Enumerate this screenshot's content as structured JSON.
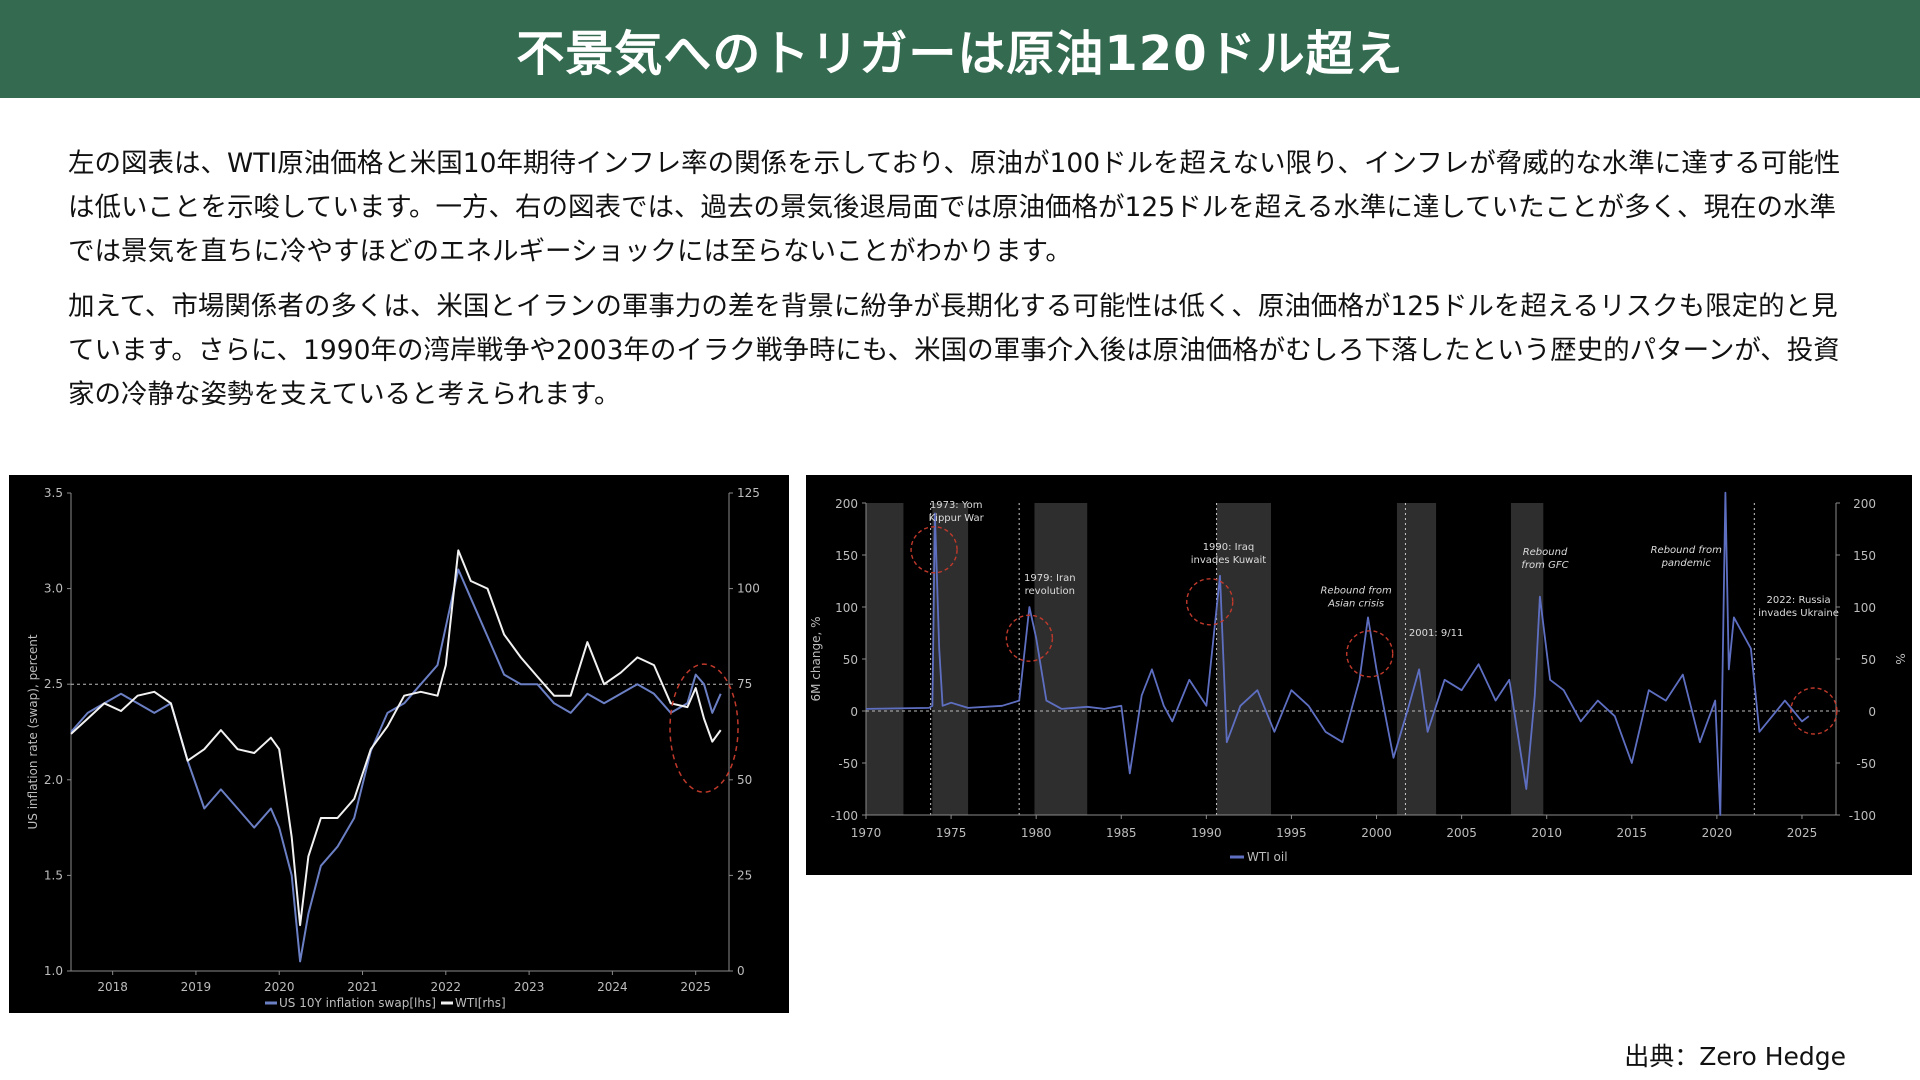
{
  "title": "不景気へのトリガーは原油120ドル超え",
  "paragraphs": [
    "左の図表は、WTI原油価格と米国10年期待インフレ率の関係を示しており、原油が100ドルを超えない限り、インフレが脅威的な水準に達する可能性は低いことを示唆しています。一方、右の図表では、過去の景気後退局面では原油価格が125ドルを超える水準に達していたことが多く、現在の水準では景気を直ちに冷やすほどのエネルギーショックには至らないことがわかります。",
    "加えて、市場関係者の多くは、米国とイランの軍事力の差を背景に紛争が長期化する可能性は低く、原油価格が125ドルを超えるリスクも限定的と見ています。さらに、1990年の湾岸戦争や2003年のイラク戦争時にも、米国の軍事介入後は原油価格がむしろ下落したという歴史的パターンが、投資家の冷静な姿勢を支えていると考えられます。"
  ],
  "source": "出典：Zero Hedge",
  "colors": {
    "header": "#336a50",
    "chart_bg": "#000000",
    "inflation_swap": "#6b7fc4",
    "wti": "#f2f2f2",
    "wti_oil_6m": "#5e6fc2",
    "recession_shade": "#2e2e2e",
    "highlight_circle": "#c0392b"
  },
  "chart_data": [
    {
      "type": "line",
      "ylabel_left": "US inflation rate (swap), percent",
      "ylim_left": [
        1.0,
        3.5
      ],
      "yticks_left": [
        "3.5",
        "3.0",
        "2.5",
        "2.0",
        "1.5",
        "1.0"
      ],
      "ylim_right": [
        0,
        125
      ],
      "yticks_right": [
        "125",
        "100",
        "75",
        "50",
        "25",
        "0"
      ],
      "xlim": [
        2017.5,
        2025.4
      ],
      "xticks": [
        "2018",
        "2019",
        "2020",
        "2021",
        "2022",
        "2023",
        "2024",
        "2025"
      ],
      "reference_line_left": 2.5,
      "highlight": "2024.9-2025.3",
      "series": [
        {
          "name": "US 10Y inflation swap[lhs]",
          "axis": "left",
          "x": [
            2017.5,
            2017.7,
            2017.9,
            2018.1,
            2018.3,
            2018.5,
            2018.7,
            2018.9,
            2019.1,
            2019.3,
            2019.5,
            2019.7,
            2019.9,
            2020.0,
            2020.15,
            2020.25,
            2020.35,
            2020.5,
            2020.7,
            2020.9,
            2021.1,
            2021.3,
            2021.5,
            2021.7,
            2021.9,
            2022.0,
            2022.15,
            2022.3,
            2022.5,
            2022.7,
            2022.9,
            2023.1,
            2023.3,
            2023.5,
            2023.7,
            2023.9,
            2024.1,
            2024.3,
            2024.5,
            2024.7,
            2024.9,
            2025.0,
            2025.1,
            2025.2,
            2025.3
          ],
          "values": [
            2.25,
            2.35,
            2.4,
            2.45,
            2.4,
            2.35,
            2.4,
            2.1,
            1.85,
            1.95,
            1.85,
            1.75,
            1.85,
            1.75,
            1.5,
            1.05,
            1.3,
            1.55,
            1.65,
            1.8,
            2.15,
            2.35,
            2.4,
            2.5,
            2.6,
            2.8,
            3.1,
            2.95,
            2.75,
            2.55,
            2.5,
            2.5,
            2.4,
            2.35,
            2.45,
            2.4,
            2.45,
            2.5,
            2.45,
            2.35,
            2.4,
            2.55,
            2.5,
            2.35,
            2.45
          ]
        },
        {
          "name": "WTI[rhs]",
          "axis": "right",
          "x": [
            2017.5,
            2017.7,
            2017.9,
            2018.1,
            2018.3,
            2018.5,
            2018.7,
            2018.9,
            2019.1,
            2019.3,
            2019.5,
            2019.7,
            2019.9,
            2020.0,
            2020.15,
            2020.25,
            2020.35,
            2020.5,
            2020.7,
            2020.9,
            2021.1,
            2021.3,
            2021.5,
            2021.7,
            2021.9,
            2022.0,
            2022.15,
            2022.3,
            2022.5,
            2022.7,
            2022.9,
            2023.1,
            2023.3,
            2023.5,
            2023.7,
            2023.9,
            2024.1,
            2024.3,
            2024.5,
            2024.7,
            2024.9,
            2025.0,
            2025.1,
            2025.2,
            2025.3
          ],
          "values": [
            62,
            66,
            70,
            68,
            72,
            73,
            70,
            55,
            58,
            63,
            58,
            57,
            61,
            58,
            35,
            12,
            30,
            40,
            40,
            45,
            58,
            64,
            72,
            73,
            72,
            80,
            110,
            102,
            100,
            88,
            82,
            77,
            72,
            72,
            86,
            75,
            78,
            82,
            80,
            70,
            69,
            74,
            66,
            60,
            63
          ]
        }
      ]
    },
    {
      "type": "line",
      "ylabel_left": "6M change, %",
      "ylabel_right": "%",
      "ylim": [
        -100,
        200
      ],
      "yticks": [
        "200",
        "150",
        "100",
        "50",
        "0",
        "-50",
        "-100"
      ],
      "xlim": [
        1970,
        2027
      ],
      "xticks": [
        "1970",
        "1975",
        "1980",
        "1985",
        "1990",
        "1995",
        "2000",
        "2005",
        "2010",
        "2015",
        "2020",
        "2025"
      ],
      "reference_line": 0,
      "legend": "WTI oil",
      "shaded_periods": [
        [
          1970,
          1972.2
        ],
        [
          1973.9,
          1976.0
        ],
        [
          1979.9,
          1983.0
        ],
        [
          1990.6,
          1993.8
        ],
        [
          2001.2,
          2003.5
        ],
        [
          2007.9,
          2009.8
        ]
      ],
      "event_lines": [
        1973.8,
        1979.0,
        1990.6,
        2001.7,
        2022.2
      ],
      "annotations": [
        {
          "text": "1973: Yom",
          "text2": "Kippur War",
          "x": 1975.3,
          "y": 195,
          "style": "normal"
        },
        {
          "text": "1979: Iran",
          "text2": "revolution",
          "x": 1980.8,
          "y": 125,
          "style": "normal"
        },
        {
          "text": "1990: Iraq",
          "text2": "invades Kuwait",
          "x": 1991.3,
          "y": 155,
          "style": "normal"
        },
        {
          "text": "Rebound from",
          "text2": "Asian crisis",
          "x": 1998.8,
          "y": 113,
          "style": "italic"
        },
        {
          "text": "2001: 9/11",
          "text2": "",
          "x": 2003.5,
          "y": 72,
          "style": "normal"
        },
        {
          "text": "Rebound",
          "text2": "from GFC",
          "x": 2009.9,
          "y": 150,
          "style": "italic"
        },
        {
          "text": "Rebound from",
          "text2": "pandemic",
          "x": 2018.2,
          "y": 152,
          "style": "italic"
        },
        {
          "text": "2022: Russia",
          "text2": "invades Ukraine",
          "x": 2024.8,
          "y": 104,
          "style": "normal"
        }
      ],
      "highlights": [
        {
          "x": 1974.0,
          "y": 155
        },
        {
          "x": 1979.6,
          "y": 70
        },
        {
          "x": 1990.2,
          "y": 105
        },
        {
          "x": 1999.6,
          "y": 55
        },
        {
          "x": 2025.7,
          "y": 0
        }
      ],
      "series": [
        {
          "name": "WTI oil",
          "x": [
            1970,
            1973.7,
            1973.9,
            1974.05,
            1974.3,
            1974.5,
            1975,
            1976,
            1978,
            1979,
            1979.6,
            1980,
            1980.6,
            1981.5,
            1983,
            1984,
            1985,
            1985.5,
            1986.2,
            1986.8,
            1987.5,
            1988,
            1989,
            1990,
            1990.8,
            1991.2,
            1992,
            1993,
            1994,
            1995,
            1996,
            1997,
            1998,
            1999,
            1999.5,
            2000,
            2001,
            2001.9,
            2002.5,
            2003,
            2004,
            2005,
            2006,
            2007,
            2007.8,
            2008.8,
            2009.3,
            2009.6,
            2010.2,
            2011,
            2012,
            2013,
            2014,
            2015,
            2016,
            2017,
            2018,
            2019,
            2019.9,
            2020.2,
            2020.5,
            2020.7,
            2021,
            2022,
            2022.5,
            2023,
            2024,
            2025,
            2025.4
          ],
          "values": [
            2,
            3,
            5,
            190,
            60,
            5,
            8,
            3,
            5,
            10,
            100,
            70,
            10,
            2,
            4,
            2,
            5,
            -60,
            15,
            40,
            5,
            -10,
            30,
            5,
            130,
            -30,
            5,
            20,
            -20,
            20,
            5,
            -20,
            -30,
            30,
            90,
            40,
            -45,
            5,
            40,
            -20,
            30,
            20,
            45,
            10,
            30,
            -75,
            15,
            110,
            30,
            20,
            -10,
            10,
            -5,
            -50,
            20,
            10,
            35,
            -30,
            10,
            -100,
            210,
            40,
            90,
            60,
            -20,
            -10,
            10,
            -10,
            -5
          ]
        }
      ]
    }
  ]
}
